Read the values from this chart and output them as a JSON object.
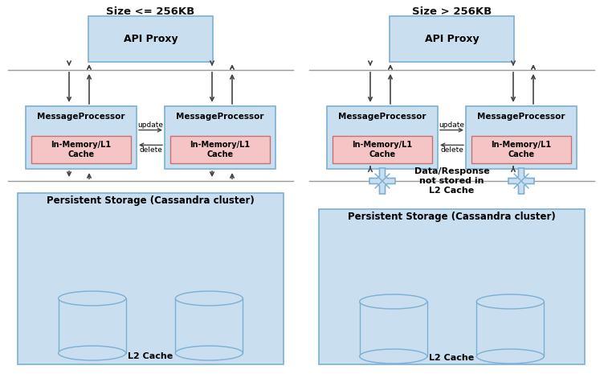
{
  "bg_color": "#ffffff",
  "box_blue_face": "#c9dff0",
  "box_blue_edge": "#7bafd4",
  "box_pink_face": "#f5c5c5",
  "box_pink_edge": "#c87070",
  "line_color": "#444444",
  "title1": "Size <= 256KB",
  "title2": "Size > 256KB",
  "label_api": "API Proxy",
  "label_mp": "MessageProcessor",
  "label_l1": "In-Memory/L1\nCache",
  "label_ps": "Persistent Storage (Cassandra cluster)",
  "label_l2": "L2 Cache",
  "label_update": "update",
  "label_delete": "delete",
  "label_no_store": "Data/Response\nnot stored in\nL2 Cache",
  "divider_color": "#999999"
}
